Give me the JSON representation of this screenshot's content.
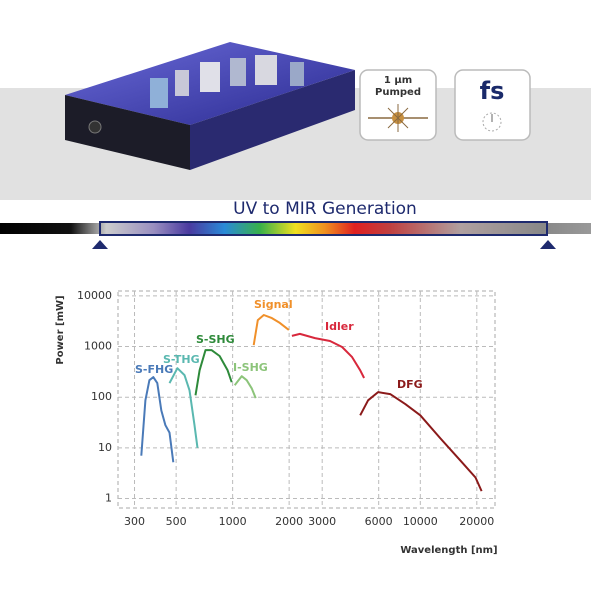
{
  "header": {
    "badge_pumped": {
      "line1": "1 µm",
      "line2": "Pumped"
    },
    "badge_fs": "fs",
    "spectrum_title": "UV to MIR Generation"
  },
  "chart_data": {
    "type": "line",
    "x_label": "Wavelength [nm]",
    "y_label": "Power [mW]",
    "log_x": true,
    "log_y": true,
    "grid": true,
    "xlim": [
      245,
      25000
    ],
    "ylim": [
      0.65,
      12500
    ],
    "xticks": [
      300,
      500,
      1000,
      2000,
      3000,
      6000,
      10000,
      20000
    ],
    "yticks": [
      1,
      10,
      100,
      1000,
      10000
    ],
    "series": [
      {
        "name": "S-FHG",
        "color": "#4a7ab8",
        "x": [
          326,
          343,
          360,
          378,
          397,
          417,
          438,
          461,
          483
        ],
        "values": [
          7,
          87,
          217,
          250,
          190,
          55,
          28,
          20,
          5.2
        ]
      },
      {
        "name": "S-THG",
        "color": "#5ab8b0",
        "x": [
          461,
          508,
          554,
          589,
          626,
          650
        ],
        "values": [
          190,
          374,
          273,
          137,
          28,
          10
        ]
      },
      {
        "name": "S-SHG",
        "color": "#2e8a3a",
        "x": [
          634,
          667,
          717,
          772,
          852,
          940,
          988
        ],
        "values": [
          109,
          340,
          850,
          850,
          650,
          340,
          198
        ]
      },
      {
        "name": "I-SHG",
        "color": "#8cc47a",
        "x": [
          1025,
          1117,
          1188,
          1264,
          1327
        ],
        "values": [
          173,
          260,
          217,
          150,
          96
        ]
      },
      {
        "name": "Signal",
        "color": "#f0902a",
        "x": [
          1295,
          1361,
          1466,
          1618,
          1783,
          1992
        ],
        "values": [
          1070,
          3330,
          4200,
          3650,
          2930,
          2130
        ]
      },
      {
        "name": "Idler",
        "color": "#d8283c",
        "x": [
          2069,
          2281,
          2746,
          3300,
          3830,
          4330,
          4780,
          5020
        ],
        "values": [
          1620,
          1780,
          1470,
          1290,
          980,
          620,
          340,
          240
        ]
      },
      {
        "name": "DFG",
        "color": "#8b1a1a",
        "x": [
          4780,
          5270,
          5960,
          6910,
          8320,
          10000,
          12790,
          16360,
          19680,
          21200
        ],
        "values": [
          44,
          87,
          126,
          115,
          73,
          44,
          15.4,
          5.6,
          2.6,
          1.4
        ]
      }
    ]
  }
}
